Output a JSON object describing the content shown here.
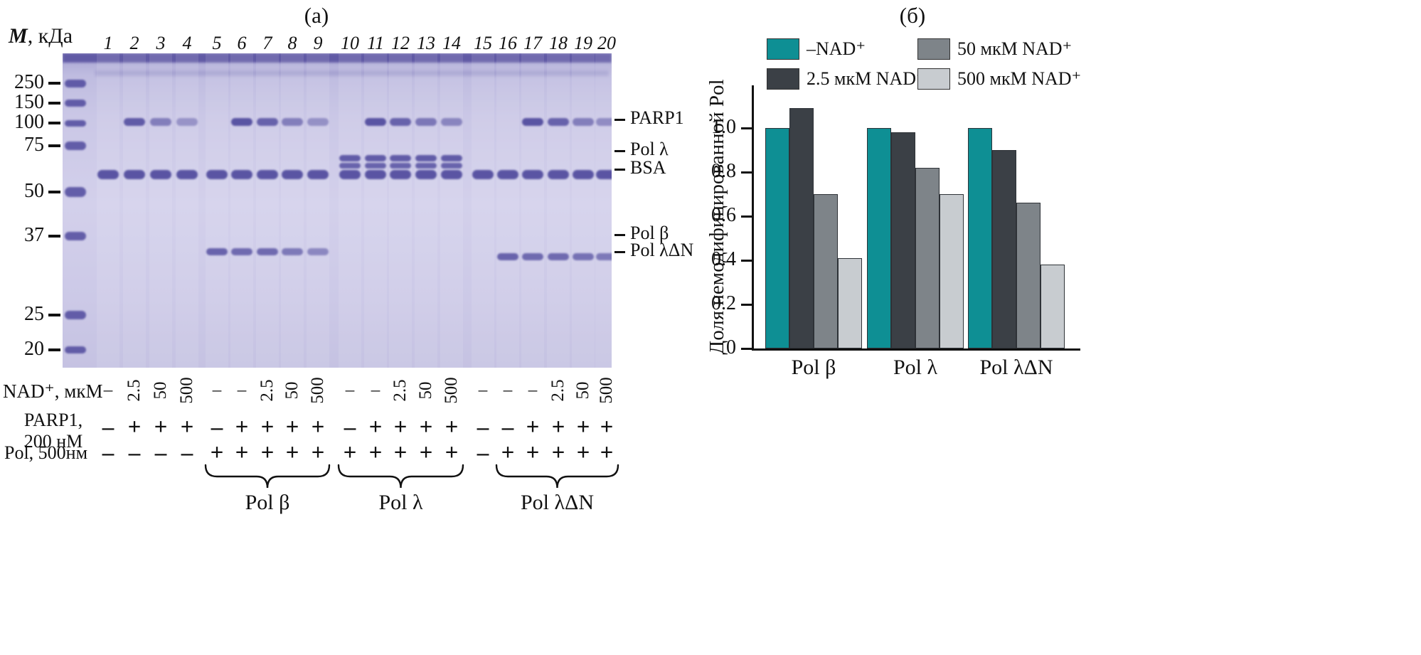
{
  "figure": {
    "panel_a_label": "(а)",
    "panel_b_label": "(б)"
  },
  "gel": {
    "mw_title_m": "M",
    "mw_title_unit": ", кДа",
    "mw_markers": [
      "250",
      "150",
      "100",
      "75",
      "50",
      "37",
      "25",
      "20"
    ],
    "lane_numbers": [
      "1",
      "2",
      "3",
      "4",
      "5",
      "6",
      "7",
      "8",
      "9",
      "10",
      "11",
      "12",
      "13",
      "14",
      "15",
      "16",
      "17",
      "18",
      "19",
      "20"
    ],
    "side_labels": [
      "PARP1",
      "Pol λ",
      "BSA",
      "Pol β",
      "Pol λΔN"
    ],
    "bands": [
      {
        "key": "parp1",
        "y": 96,
        "h": 11,
        "lanes": [
          2,
          3,
          4,
          6,
          7,
          8,
          9,
          11,
          12,
          13,
          14,
          17,
          18,
          19,
          20
        ],
        "alpha": [
          0.8,
          0.55,
          0.4,
          0.85,
          0.75,
          0.55,
          0.42,
          0.85,
          0.75,
          0.6,
          0.5,
          0.85,
          0.75,
          0.55,
          0.45
        ]
      },
      {
        "key": "pol-lambda-upper",
        "y": 147,
        "h": 9,
        "lanes": [
          10,
          11,
          12,
          13,
          14
        ],
        "alpha": 0.8
      },
      {
        "key": "pol-lambda-lower",
        "y": 158,
        "h": 8,
        "lanes": [
          10,
          11,
          12,
          13,
          14
        ],
        "alpha": 0.75
      },
      {
        "key": "bsa",
        "y": 170,
        "h": 13,
        "lanes": [
          1,
          2,
          3,
          4,
          5,
          6,
          7,
          8,
          9,
          10,
          11,
          12,
          13,
          14,
          15,
          16,
          17,
          18,
          19,
          20
        ],
        "alpha": 0.85
      },
      {
        "key": "pol-beta",
        "y": 279,
        "h": 10,
        "lanes": [
          5,
          6,
          7,
          8,
          9
        ],
        "alpha": [
          0.75,
          0.7,
          0.7,
          0.6,
          0.5
        ]
      },
      {
        "key": "pol-lambda-dn",
        "y": 286,
        "h": 10,
        "lanes": [
          16,
          17,
          18,
          19,
          20
        ],
        "alpha": [
          0.75,
          0.7,
          0.7,
          0.65,
          0.6
        ]
      }
    ],
    "annotation_rows": {
      "nad": {
        "label": "NAD⁺, мкМ",
        "values": [
          "–",
          "2.5",
          "50",
          "500",
          "–",
          "–",
          "2.5",
          "50",
          "500",
          "–",
          "–",
          "2.5",
          "50",
          "500",
          "–",
          "–",
          "–",
          "2.5",
          "50",
          "500"
        ]
      },
      "parp1": {
        "label_line1": "PARP1,",
        "label_line2": "200 нМ",
        "values": [
          "–",
          "+",
          "+",
          "+",
          "–",
          "+",
          "+",
          "+",
          "+",
          "–",
          "+",
          "+",
          "+",
          "+",
          "–",
          "–",
          "+",
          "+",
          "+",
          "+"
        ]
      },
      "pol": {
        "label": "Pol, 500нм",
        "values": [
          "–",
          "–",
          "–",
          "–",
          "+",
          "+",
          "+",
          "+",
          "+",
          "+",
          "+",
          "+",
          "+",
          "+",
          "–",
          "+",
          "+",
          "+",
          "+",
          "+"
        ]
      }
    },
    "groups": [
      {
        "label": "Pol β",
        "from": 5,
        "to": 9
      },
      {
        "label": "Pol λ",
        "from": 10,
        "to": 14
      },
      {
        "label": "Pol λΔN",
        "from": 16,
        "to": 20
      }
    ]
  },
  "chart_data": {
    "type": "bar",
    "title": "",
    "categories": [
      "Pol β",
      "Pol λ",
      "Pol λΔN"
    ],
    "series": [
      {
        "name": "–NAD⁺",
        "color": "#0e8f94",
        "values": [
          1.0,
          1.0,
          1.0
        ]
      },
      {
        "name": "2.5 мкМ NAD⁺",
        "color": "#3b4046",
        "values": [
          1.09,
          0.98,
          0.9
        ]
      },
      {
        "name": "50 мкМ NAD⁺",
        "color": "#7e8489",
        "values": [
          0.7,
          0.82,
          0.66
        ]
      },
      {
        "name": "500 мкМ NAD⁺",
        "color": "#c8ccd0",
        "values": [
          0.41,
          0.7,
          0.38
        ]
      }
    ],
    "ylabel": "Доля немодифицированной Pol",
    "xlabel": "",
    "yticks": [
      0,
      0.2,
      0.4,
      0.6,
      0.8,
      1.0
    ],
    "ylim": [
      0,
      1.18
    ],
    "grid": false,
    "legend_position": "top"
  }
}
